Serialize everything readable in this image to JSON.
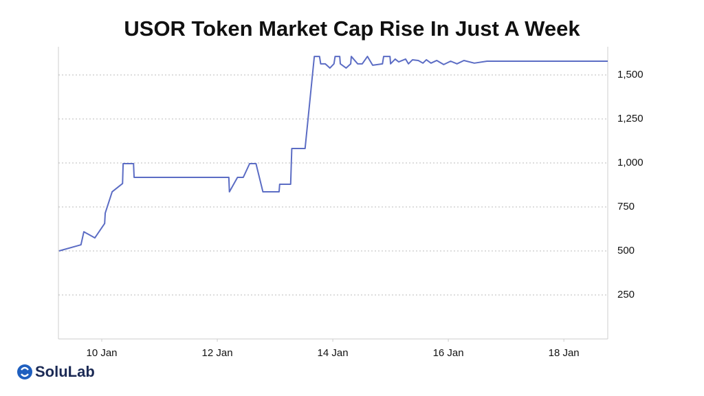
{
  "chart_data": {
    "type": "line",
    "title": "USOR Token Market Cap Rise In Just A Week",
    "x": [
      9.26,
      9.64,
      9.69,
      9.88,
      10.05,
      10.06,
      10.18,
      10.36,
      10.37,
      10.55,
      10.56,
      12.2,
      12.21,
      12.35,
      12.45,
      12.56,
      12.67,
      12.79,
      13.07,
      13.08,
      13.27,
      13.29,
      13.52,
      13.68,
      13.77,
      13.79,
      13.87,
      13.95,
      14.02,
      14.04,
      14.12,
      14.13,
      14.23,
      14.31,
      14.32,
      14.43,
      14.51,
      14.6,
      14.69,
      14.86,
      14.88,
      14.99,
      15.0,
      15.08,
      15.14,
      15.26,
      15.31,
      15.38,
      15.48,
      15.56,
      15.62,
      15.7,
      15.8,
      15.92,
      16.04,
      16.15,
      16.27,
      16.45,
      16.67,
      18.76
    ],
    "series": [
      {
        "name": "Market Cap",
        "color": "#5b6cc4",
        "values": [
          500,
          535,
          609,
          574,
          656,
          715,
          836,
          883,
          996,
          996,
          918,
          918,
          836,
          918,
          918,
          996,
          996,
          836,
          836,
          879,
          879,
          1082,
          1082,
          1605,
          1605,
          1563,
          1563,
          1539,
          1563,
          1605,
          1605,
          1563,
          1539,
          1563,
          1605,
          1563,
          1563,
          1605,
          1555,
          1563,
          1605,
          1605,
          1563,
          1590,
          1574,
          1590,
          1563,
          1586,
          1582,
          1567,
          1586,
          1567,
          1582,
          1559,
          1578,
          1563,
          1582,
          1567,
          1578,
          1578
        ]
      }
    ],
    "xlim": [
      9.25,
      18.76
    ],
    "xticks": [
      {
        "value": 10,
        "label": "10 Jan"
      },
      {
        "value": 12,
        "label": "12 Jan"
      },
      {
        "value": 14,
        "label": "14 Jan"
      },
      {
        "value": 16,
        "label": "16 Jan"
      },
      {
        "value": 18,
        "label": "18 Jan"
      }
    ],
    "ylim": [
      0,
      1660
    ],
    "yticks": [
      250,
      500,
      750,
      {
        "value": 1000,
        "label": "1,000"
      },
      {
        "value": 1250,
        "label": "1,250"
      },
      {
        "value": 1500,
        "label": "1,500"
      }
    ],
    "grid": true
  },
  "logo": "SoluLab"
}
